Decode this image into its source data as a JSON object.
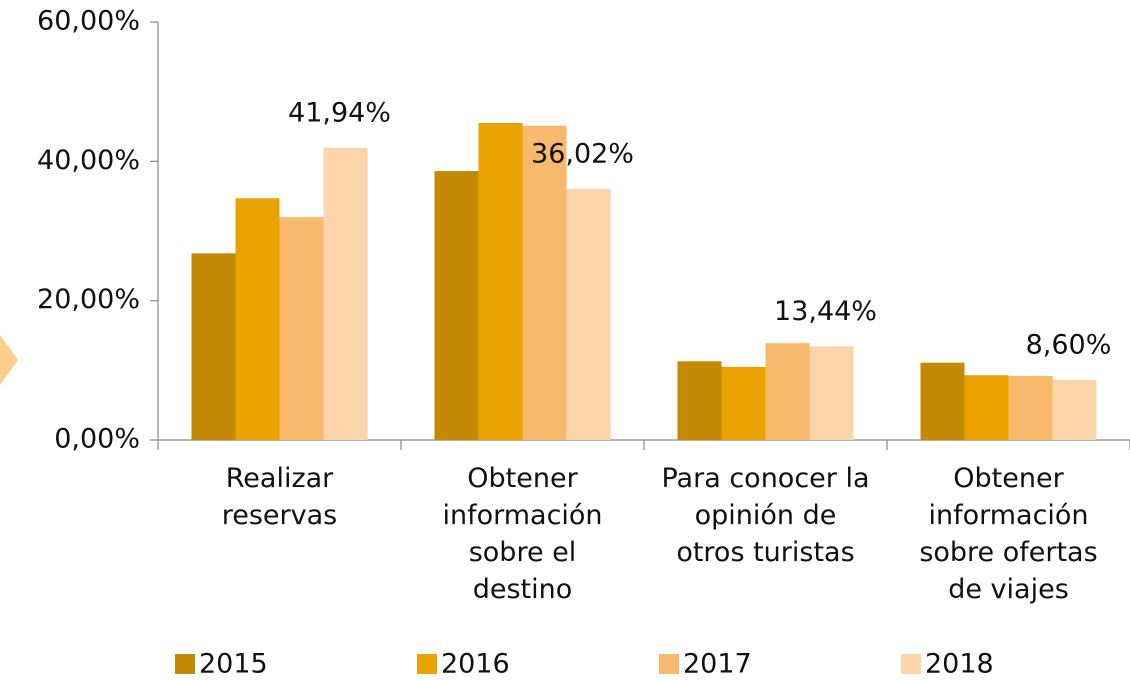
{
  "chart_data": {
    "type": "bar",
    "categories": [
      "Realizar\nreservas",
      "Obtener\ninformación\nsobre el\ndestino",
      "Para conocer la\nopinión de\notros turistas",
      "Obtener\ninformación\nsobre ofertas\nde viajes"
    ],
    "series": [
      {
        "name": "2015",
        "color": "#c48a05",
        "values": [
          26.8,
          38.6,
          11.3,
          11.1
        ]
      },
      {
        "name": "2016",
        "color": "#e9a200",
        "values": [
          34.7,
          45.5,
          10.5,
          9.3
        ]
      },
      {
        "name": "2017",
        "color": "#f7b96b",
        "values": [
          32.0,
          45.1,
          13.9,
          9.2
        ]
      },
      {
        "name": "2018",
        "color": "#fbd4aa",
        "values": [
          41.94,
          36.02,
          13.44,
          8.6
        ],
        "value_labels": [
          "41,94%",
          "36,02%",
          "13,44%",
          "8,60%"
        ]
      }
    ],
    "ylim": [
      0,
      60
    ],
    "yticks": [
      {
        "value": 0,
        "label": "0,00%"
      },
      {
        "value": 20,
        "label": "20,00%"
      },
      {
        "value": 40,
        "label": "40,00%"
      },
      {
        "value": 60,
        "label": "60,00%"
      }
    ],
    "grid": false,
    "legend": "bottom"
  }
}
